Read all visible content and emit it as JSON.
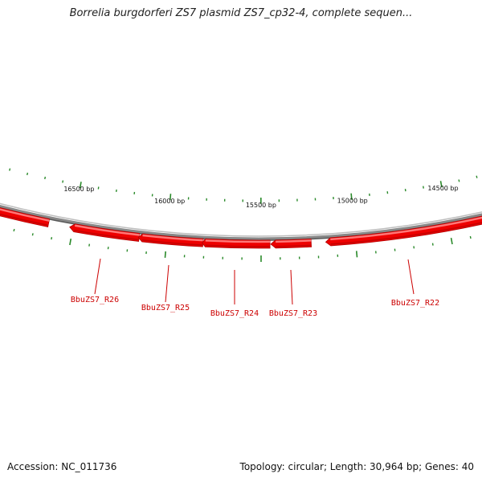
{
  "title": "Borrelia burgdorferi ZS7 plasmid ZS7_cp32-4, complete sequen...",
  "footer": {
    "accession": "Accession: NC_011736",
    "topology": "Topology: circular; Length: 30,964 bp; Genes: 40"
  },
  "colors": {
    "backbone": "#888888",
    "gene_fill": "#ee0000",
    "gene_highlight": "#ff7777",
    "gene_label": "#cc0000",
    "tick": "#2a8a2a"
  },
  "position_labels": [
    "16500 bp",
    "16000 bp",
    "15500 bp",
    "15000 bp",
    "14500 bp"
  ],
  "genes": [
    {
      "name": "BbuZS7_R26"
    },
    {
      "name": "BbuZS7_R25"
    },
    {
      "name": "BbuZS7_R24"
    },
    {
      "name": "BbuZS7_R23"
    },
    {
      "name": "BbuZS7_R22"
    }
  ]
}
